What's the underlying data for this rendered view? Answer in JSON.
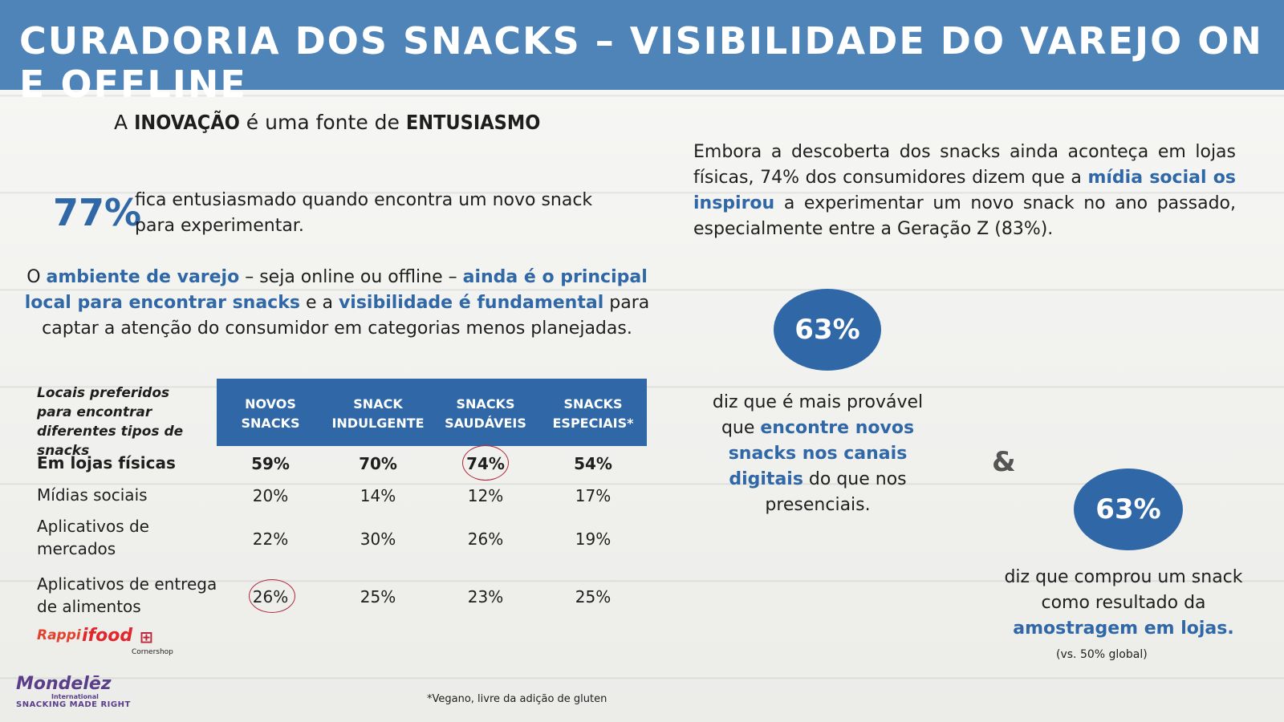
{
  "title": "CURADORIA DOS SNACKS – VISIBILIDADE DO VAREJO ON E OFFLINE",
  "headline": {
    "pre": "A ",
    "b1": "INOVAÇÃO",
    "mid": " é uma fonte de ",
    "b2": "ENTUSIASMO"
  },
  "stat77": {
    "value": "77%",
    "text": "fica entusiasmado quando encontra um novo snack para experimentar."
  },
  "left_para": {
    "p1": "O ",
    "h1": "ambiente de varejo",
    "p2": " – seja online ou offline – ",
    "h2": "ainda é o principal local para encontrar snacks",
    "p3": " e a ",
    "h3": "visibilidade é fundamental",
    "p4": " para captar a atenção do consumidor em categorias menos planejadas."
  },
  "right_para": {
    "p1": "Embora a descoberta dos snacks ainda aconteça em lojas físicas, 74% dos consumidores dizem que a ",
    "h1": "mídia social os inspirou",
    "p2": " a experimentar um novo snack no ano passado, especialmente entre a Geração Z (83%)."
  },
  "table": {
    "label": "Locais preferidos para encontrar diferentes tipos de snacks",
    "headers": [
      "NOVOS SNACKS",
      "SNACK INDULGENTE",
      "SNACKS SAUDÁVEIS",
      "SNACKS ESPECIAIS*"
    ],
    "rows": [
      {
        "label": "Em lojas físicas",
        "values": [
          "59%",
          "70%",
          "74%",
          "54%"
        ]
      },
      {
        "label": "Mídias sociais",
        "values": [
          "20%",
          "14%",
          "12%",
          "17%"
        ]
      },
      {
        "label": "Aplicativos de mercados",
        "values": [
          "22%",
          "30%",
          "26%",
          "19%"
        ]
      },
      {
        "label": "Aplicativos de entrega de alimentos",
        "values": [
          "26%",
          "25%",
          "23%",
          "25%"
        ]
      }
    ]
  },
  "logos": {
    "rappi": "Rappi",
    "ifood": "ifood",
    "cornershop": "Cornershop"
  },
  "mondelez": {
    "name": "Mondelēz",
    "sub": "International",
    "tagline": "SNACKING MADE RIGHT"
  },
  "footnote": "*Vegano, livre da adição de gluten",
  "stat_a": {
    "value": "63%",
    "p1": "diz que é mais provável que ",
    "h1": "encontre novos snacks nos canais digitais",
    "p2": " do que nos presenciais."
  },
  "amp": "&",
  "stat_b": {
    "value": "63%",
    "p1": "diz que comprou um snack como resultado da ",
    "h1": "amostragem em lojas.",
    "note": "(vs. 50% global)"
  },
  "colors": {
    "banner": "#4f84b8",
    "accent": "#2f67a7",
    "circle": "#b3263a"
  }
}
